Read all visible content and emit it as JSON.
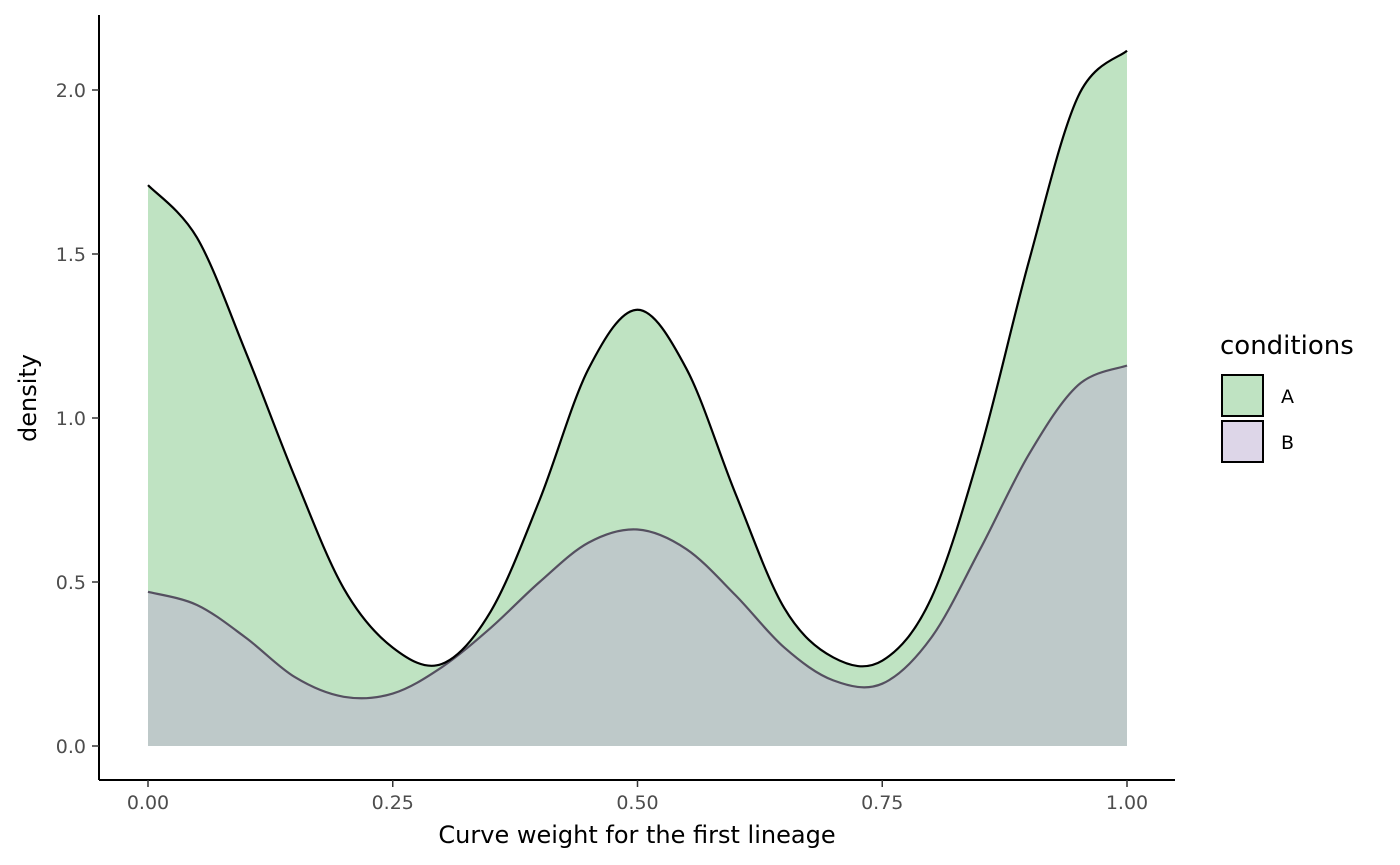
{
  "chart_data": {
    "type": "area",
    "subtype": "density",
    "xlabel": "Curve weight for the first lineage",
    "ylabel": "density",
    "xlim": [
      0,
      1
    ],
    "ylim": [
      0,
      2.12
    ],
    "x_ticks": [
      "0.00",
      "0.25",
      "0.50",
      "0.75",
      "1.00"
    ],
    "y_ticks": [
      "0.0",
      "0.5",
      "1.0",
      "1.5",
      "2.0"
    ],
    "grid": false,
    "legend": {
      "title": "conditions",
      "placement": "right",
      "entries": [
        "A",
        "B"
      ]
    },
    "x": [
      0.0,
      0.05,
      0.1,
      0.15,
      0.2,
      0.25,
      0.3,
      0.35,
      0.4,
      0.45,
      0.5,
      0.55,
      0.6,
      0.65,
      0.7,
      0.75,
      0.8,
      0.85,
      0.9,
      0.95,
      1.0
    ],
    "series": [
      {
        "name": "A",
        "color": "#bfe3c2",
        "line_color": "#000000",
        "values": [
          1.71,
          1.55,
          1.2,
          0.82,
          0.48,
          0.3,
          0.25,
          0.41,
          0.75,
          1.15,
          1.33,
          1.15,
          0.77,
          0.42,
          0.27,
          0.26,
          0.45,
          0.9,
          1.48,
          1.98,
          2.12
        ]
      },
      {
        "name": "B",
        "color": "#ddd6e8",
        "line_color": "#555060",
        "values": [
          0.47,
          0.43,
          0.33,
          0.21,
          0.15,
          0.16,
          0.24,
          0.36,
          0.5,
          0.62,
          0.66,
          0.6,
          0.46,
          0.3,
          0.2,
          0.19,
          0.33,
          0.6,
          0.89,
          1.1,
          1.16
        ]
      }
    ],
    "overlap_color": "#bec9c9"
  }
}
